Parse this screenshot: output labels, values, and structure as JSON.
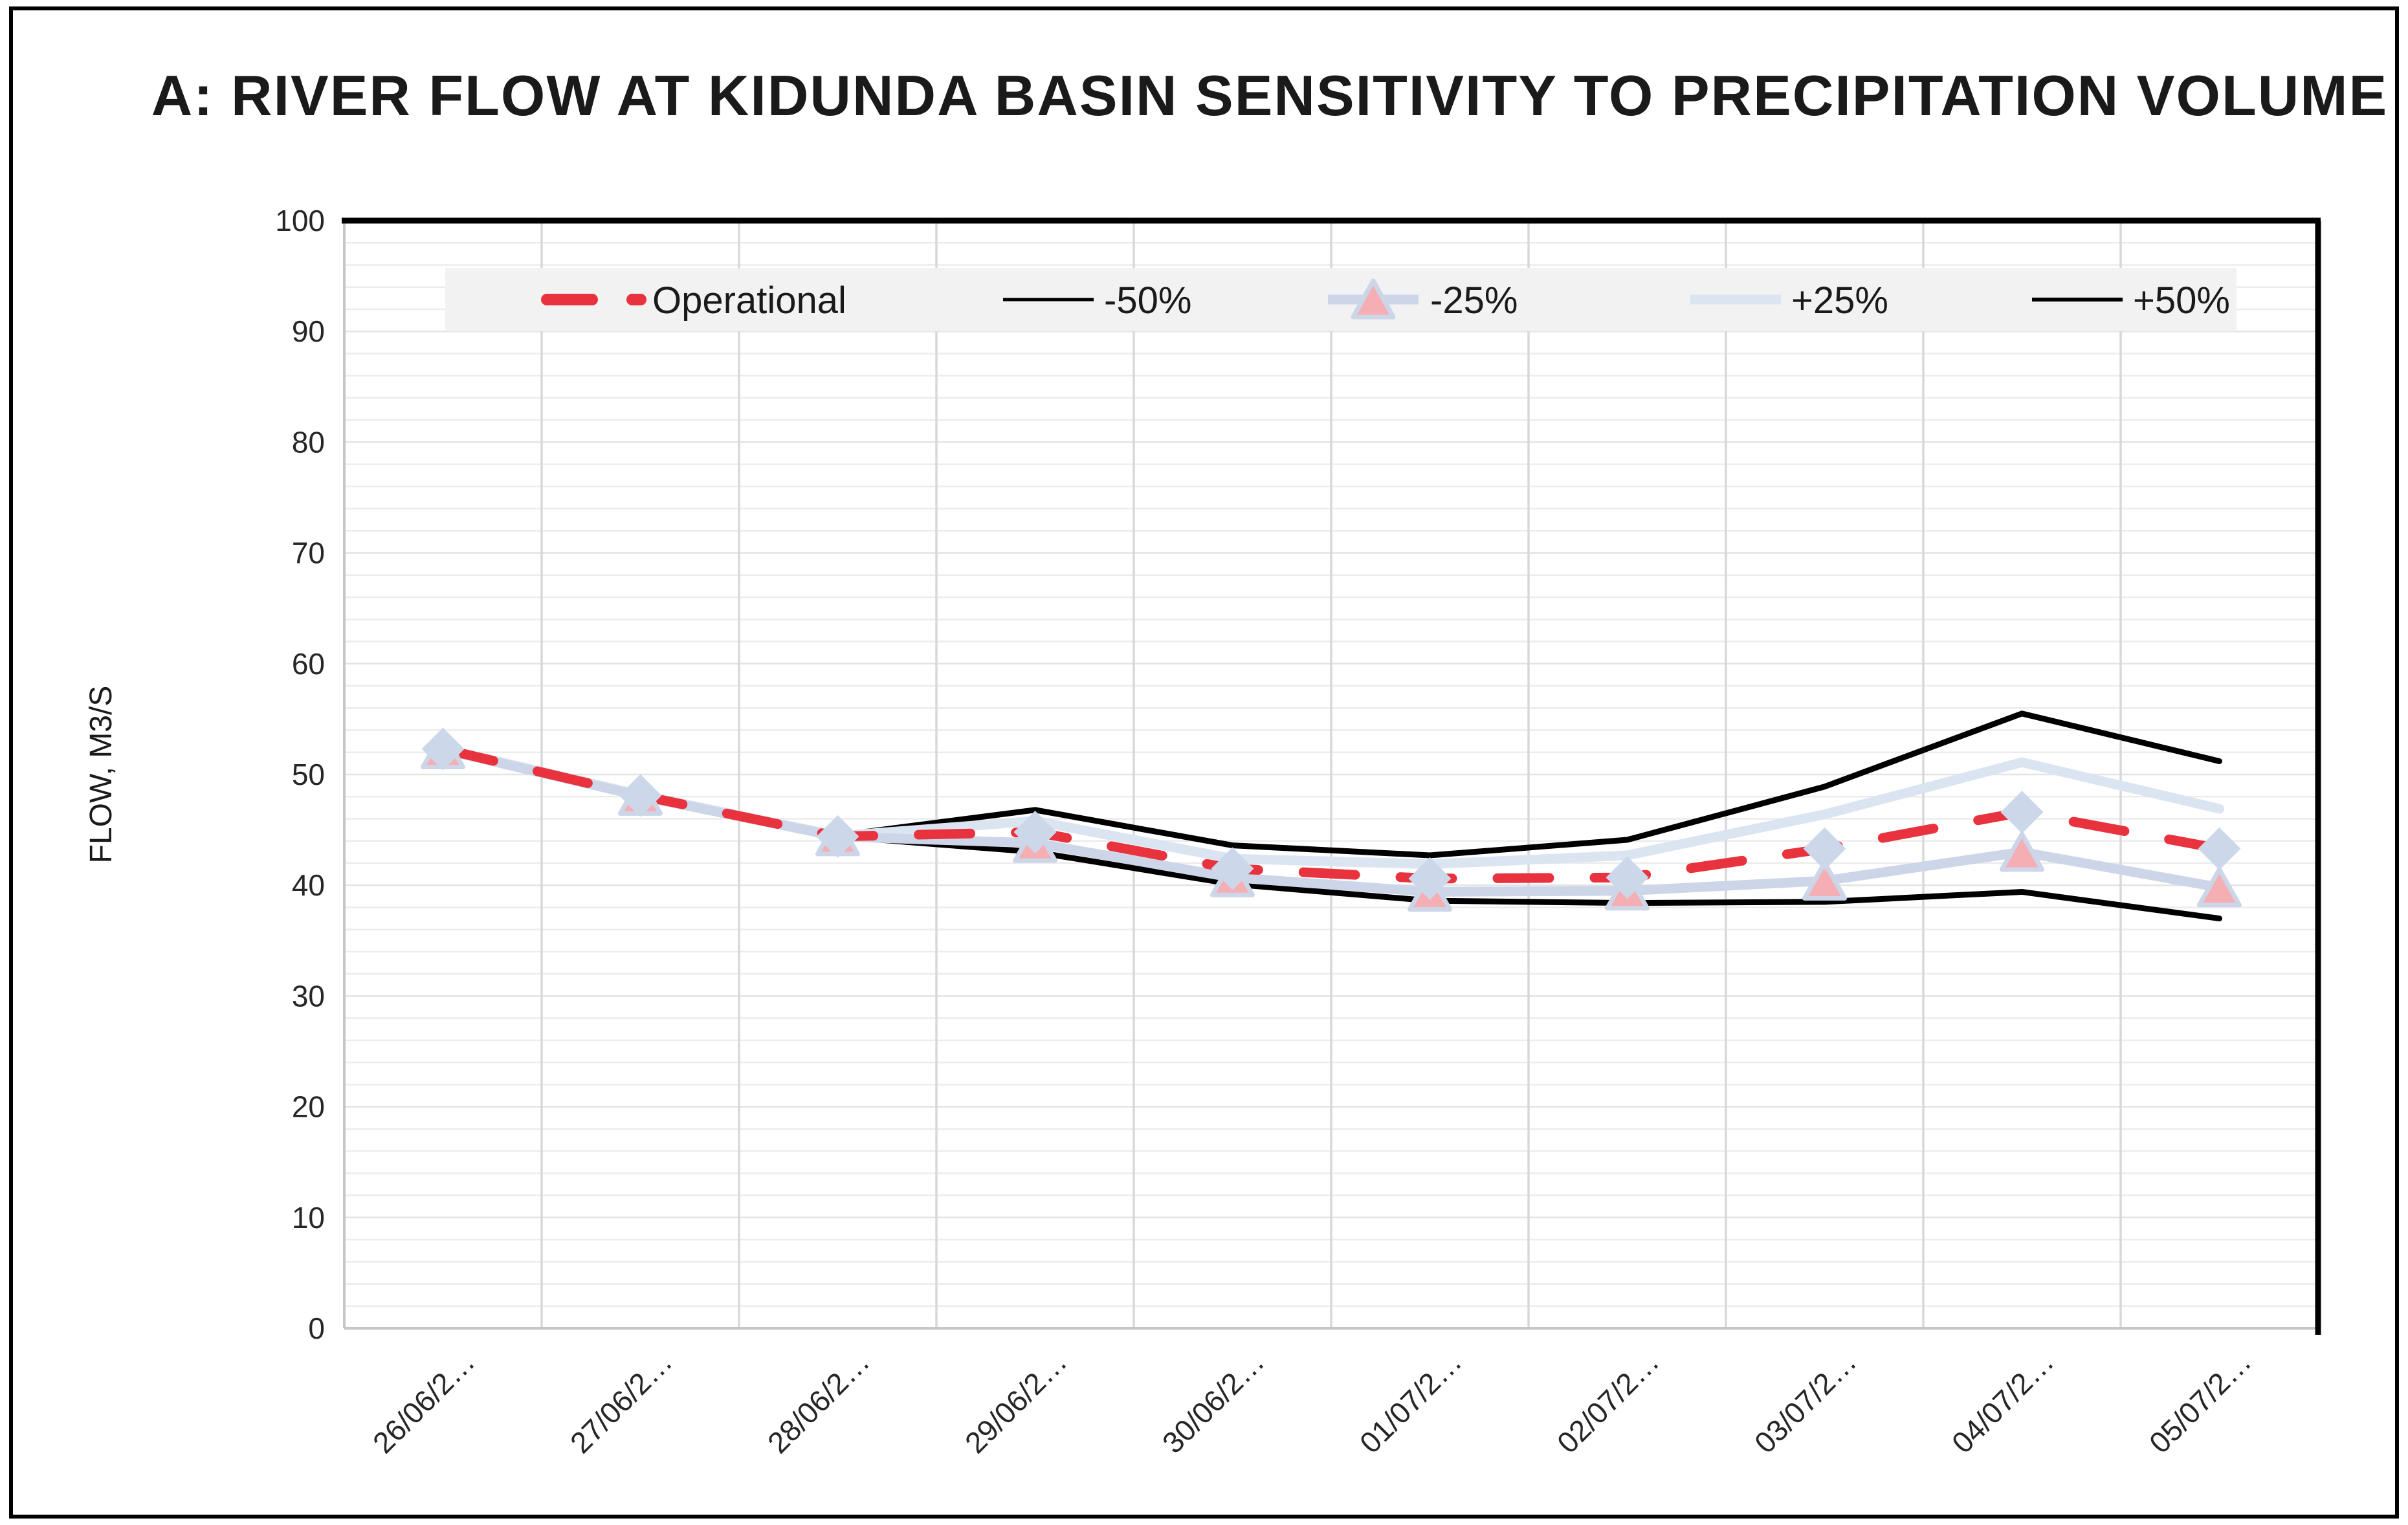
{
  "title": "A: RIVER FLOW AT KIDUNDA BASIN  SENSITIVITY TO PRECIPITATION VOLUME",
  "chart_data": {
    "type": "line",
    "title": "A: RIVER FLOW AT KIDUNDA BASIN  SENSITIVITY TO PRECIPITATION VOLUME",
    "xlabel": "",
    "ylabel": "FLOW, M3/S",
    "ylim": [
      0,
      100
    ],
    "ytick_step": 10,
    "minor_gridline_step": 2,
    "grid": true,
    "legend_position": "top-inside",
    "yticks": [
      0,
      10,
      20,
      30,
      40,
      50,
      60,
      70,
      80,
      90,
      100
    ],
    "categories": [
      "26/06/2…",
      "27/06/2…",
      "28/06/2…",
      "29/06/2…",
      "30/06/2…",
      "01/07/2…",
      "02/07/2…",
      "03/07/2…",
      "04/07/2…",
      "05/07/2…"
    ],
    "series": [
      {
        "name": "Operational",
        "color": "#e8333f",
        "style": "dashed",
        "marker": "diamond",
        "marker_color": "#ccd8ea",
        "width": 15,
        "values": [
          52.3,
          48.1,
          44.4,
          44.8,
          41.5,
          40.6,
          40.7,
          43.3,
          46.6,
          43.3
        ]
      },
      {
        "name": "-50%",
        "color": "#000000",
        "style": "solid",
        "marker": "none",
        "marker_color": "",
        "width": 9,
        "values": [
          52.2,
          48.0,
          44.4,
          43.0,
          40.1,
          38.6,
          38.4,
          38.5,
          39.4,
          37.0
        ]
      },
      {
        "name": "-25%",
        "color": "#ccd6e8",
        "style": "solid",
        "marker": "triangle",
        "marker_color": "#f5aeb4",
        "width": 15,
        "values": [
          52.25,
          48.05,
          44.4,
          43.8,
          40.7,
          39.4,
          39.5,
          40.4,
          43.0,
          39.8
        ]
      },
      {
        "name": "+25%",
        "color": "#dbe5f1",
        "style": "solid",
        "marker": "none",
        "marker_color": "",
        "width": 15,
        "values": [
          52.35,
          48.15,
          44.45,
          45.8,
          42.4,
          41.9,
          42.7,
          46.4,
          51.1,
          46.9
        ]
      },
      {
        "name": "+50%",
        "color": "#000000",
        "style": "solid",
        "marker": "none",
        "marker_color": "",
        "width": 9,
        "values": [
          52.4,
          48.2,
          44.5,
          46.8,
          43.6,
          42.7,
          44.1,
          48.9,
          55.5,
          51.2
        ]
      }
    ]
  },
  "colors": {
    "operational_red": "#e8333f",
    "minus25_line": "#ccd6e8",
    "plus25_line": "#dbe5f1",
    "extreme_black": "#000000",
    "minor_gridline": "#ececec",
    "major_gridline": "#e3e3e3",
    "vertical_gridline": "#d8d8d8",
    "axis_line": "#c6c6c6",
    "plot_border": "#000000",
    "legend_background": "#f2f2f2",
    "tick_text": "#262626"
  }
}
